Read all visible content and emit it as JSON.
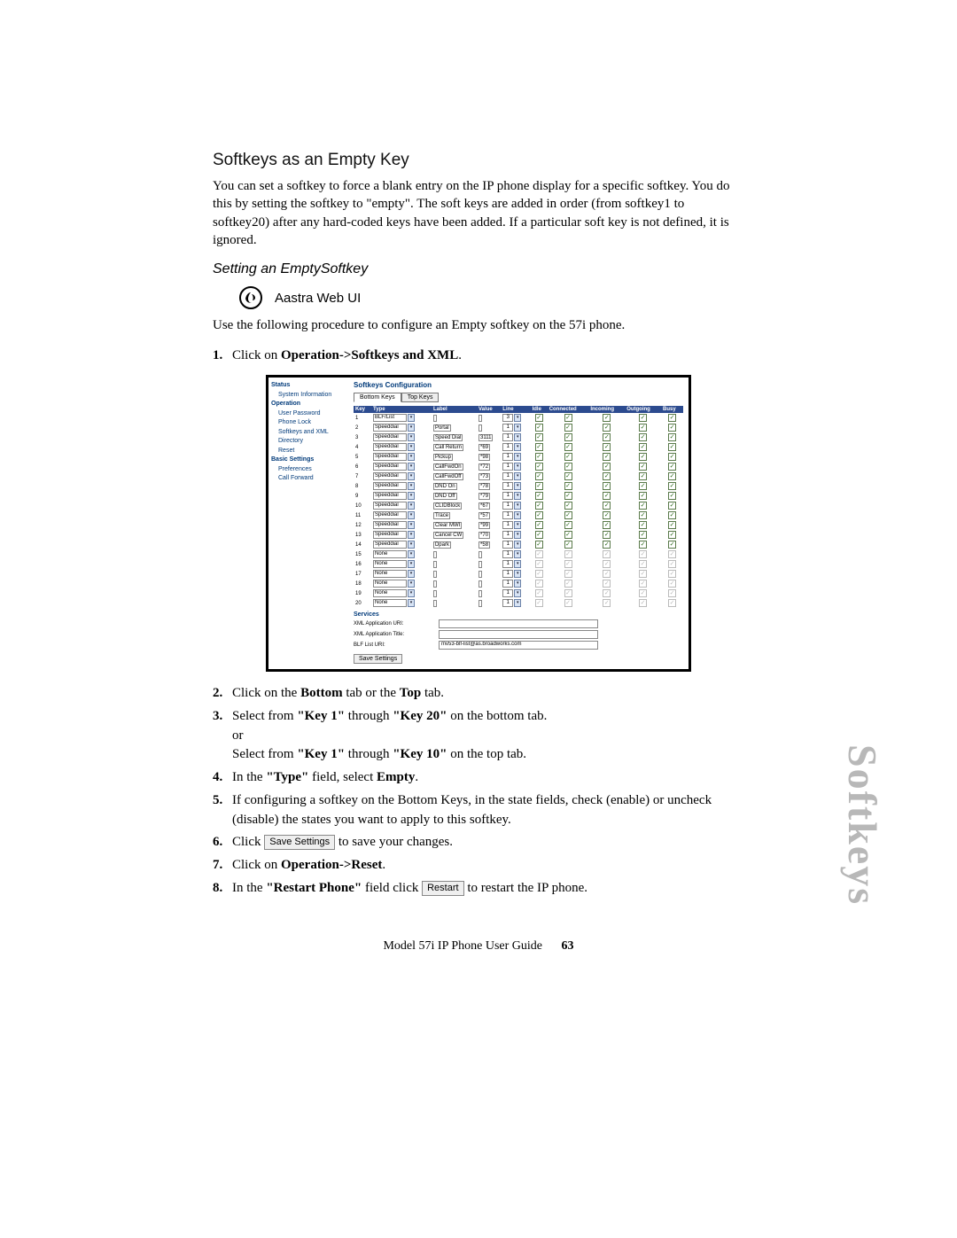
{
  "heading": "Softkeys as an Empty Key",
  "intro": "You can set a softkey to force a blank entry on the IP phone display for a specific softkey.  You do this by setting the softkey to \"empty\". The soft keys are added in order (from softkey1 to softkey20) after any hard-coded keys have been added. If a particular soft key is not defined, it is ignored.",
  "subheading": "Setting an EmptySoftkey",
  "webui_label": "Aastra Web UI",
  "procedure_intro": "Use the following procedure to configure an Empty softkey on the 57i phone.",
  "steps": {
    "s1_pre": "Click on ",
    "s1_bold": "Operation->Softkeys and XML",
    "s1_post": ".",
    "s2_a": "Click on the ",
    "s2_b": "Bottom",
    "s2_c": " tab or the ",
    "s2_d": "Top",
    "s2_e": " tab.",
    "s3_a": "Select from ",
    "s3_b": "\"Key 1\"",
    "s3_c": " through ",
    "s3_d": "\"Key 20\"",
    "s3_e": " on the bottom tab.",
    "s3_or": "or",
    "s3_f": "Select from ",
    "s3_g": "\"Key 1\"",
    "s3_h": " through ",
    "s3_i": "\"Key 10\"",
    "s3_j": " on the top tab.",
    "s4_a": "In the ",
    "s4_b": "\"Type\"",
    "s4_c": " field, select ",
    "s4_d": "Empty",
    "s4_e": ".",
    "s5": "If configuring a softkey on the Bottom Keys, in the state fields, check (enable) or uncheck (disable) the states you want to apply to this softkey.",
    "s6_a": "Click ",
    "s6_btn": "Save Settings",
    "s6_b": " to save your changes.",
    "s7_a": "Click on ",
    "s7_b": "Operation->Reset",
    "s7_c": ".",
    "s8_a": "In the ",
    "s8_b": "\"Restart Phone\"",
    "s8_c": " field click ",
    "s8_btn": "Restart",
    "s8_d": " to restart the IP phone."
  },
  "side_label": "Softkeys",
  "footer": {
    "doc": "Model 57i IP Phone User Guide",
    "page": "63"
  },
  "screenshot": {
    "title": "Softkeys Configuration",
    "tabs": {
      "bottom": "Bottom Keys",
      "top": "Top Keys"
    },
    "sidebar": {
      "status": "Status",
      "status_items": [
        "System Information"
      ],
      "operation": "Operation",
      "operation_items": [
        "User Password",
        "Phone Lock",
        "Softkeys and XML",
        "Directory",
        "Reset"
      ],
      "basic": "Basic Settings",
      "basic_items": [
        "Preferences",
        "Call Forward"
      ]
    },
    "columns": [
      "Key",
      "Type",
      "Label",
      "Value",
      "Line",
      "Idle",
      "Connected",
      "Incoming",
      "Outgoing",
      "Busy"
    ],
    "rows": [
      {
        "k": "1",
        "type": "BLF/List",
        "label": "",
        "value": "",
        "line": "3",
        "on": true,
        "dim": false
      },
      {
        "k": "2",
        "type": "Speeddial",
        "label": "Portal",
        "value": "",
        "line": "1",
        "on": true,
        "dim": false
      },
      {
        "k": "3",
        "type": "Speeddial",
        "label": "Speed Dial",
        "value": "3111",
        "line": "1",
        "on": true,
        "dim": false
      },
      {
        "k": "4",
        "type": "Speeddial",
        "label": "Call Return",
        "value": "*69",
        "line": "1",
        "on": true,
        "dim": false
      },
      {
        "k": "5",
        "type": "Speeddial",
        "label": "Pickup",
        "value": "*98",
        "line": "1",
        "on": true,
        "dim": false
      },
      {
        "k": "6",
        "type": "Speeddial",
        "label": "CallFwdOn",
        "value": "*72",
        "line": "1",
        "on": true,
        "dim": false
      },
      {
        "k": "7",
        "type": "Speeddial",
        "label": "CallFwdOff",
        "value": "*73",
        "line": "1",
        "on": true,
        "dim": false
      },
      {
        "k": "8",
        "type": "Speeddial",
        "label": "DND On",
        "value": "*78",
        "line": "1",
        "on": true,
        "dim": false
      },
      {
        "k": "9",
        "type": "Speeddial",
        "label": "DND Off",
        "value": "*79",
        "line": "1",
        "on": true,
        "dim": false
      },
      {
        "k": "10",
        "type": "Speeddial",
        "label": "CLIDBlock",
        "value": "*67",
        "line": "1",
        "on": true,
        "dim": false
      },
      {
        "k": "11",
        "type": "Speeddial",
        "label": "Trace",
        "value": "*57",
        "line": "1",
        "on": true,
        "dim": false
      },
      {
        "k": "12",
        "type": "Speeddial",
        "label": "Clear MWI",
        "value": "*99",
        "line": "1",
        "on": true,
        "dim": false
      },
      {
        "k": "13",
        "type": "Speeddial",
        "label": "Cancel CW",
        "value": "*70",
        "line": "1",
        "on": true,
        "dim": false
      },
      {
        "k": "14",
        "type": "Speeddial",
        "label": "Dpark",
        "value": "*58",
        "line": "1",
        "on": true,
        "dim": false
      },
      {
        "k": "15",
        "type": "None",
        "label": "",
        "value": "",
        "line": "1",
        "on": true,
        "dim": true
      },
      {
        "k": "16",
        "type": "None",
        "label": "",
        "value": "",
        "line": "1",
        "on": true,
        "dim": true
      },
      {
        "k": "17",
        "type": "None",
        "label": "",
        "value": "",
        "line": "1",
        "on": true,
        "dim": true
      },
      {
        "k": "18",
        "type": "None",
        "label": "",
        "value": "",
        "line": "1",
        "on": true,
        "dim": true
      },
      {
        "k": "19",
        "type": "None",
        "label": "",
        "value": "",
        "line": "1",
        "on": true,
        "dim": true
      },
      {
        "k": "20",
        "type": "None",
        "label": "",
        "value": "",
        "line": "1",
        "on": true,
        "dim": true
      }
    ],
    "services": {
      "heading": "Services",
      "xml_uri_lbl": "XML Application URI:",
      "xml_uri_val": "",
      "xml_title_lbl": "XML Application Title:",
      "xml_title_val": "",
      "blf_lbl": "BLF List URI:",
      "blf_val": "mv53-blf-list@as.broadworks.com",
      "save_btn": "Save Settings"
    },
    "colors": {
      "header_bg": "#2c4b8f",
      "header_fg": "#ffffff",
      "link": "#003a7a",
      "border": "#000000",
      "check": "#2a6a1a"
    }
  }
}
